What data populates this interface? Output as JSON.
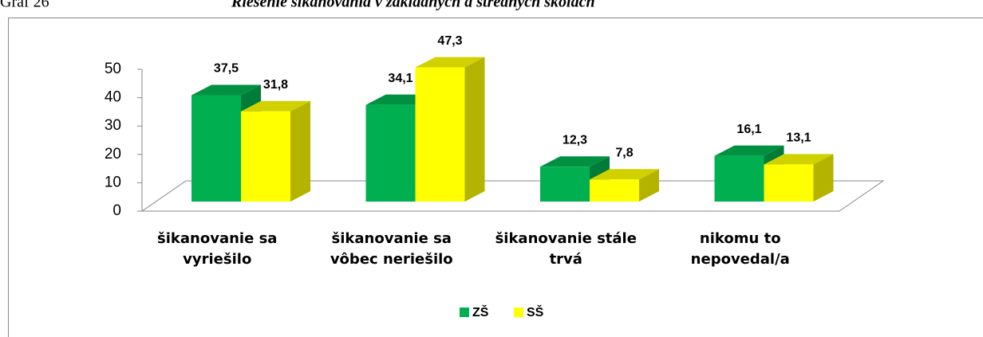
{
  "caption": {
    "label": "Graf 26",
    "title": "Riešenie šikanovania v základných a stredných školách"
  },
  "chart_data": {
    "type": "bar3d",
    "categories": [
      "šikanovanie sa vyriešilo",
      "šikanovanie sa vôbec neriešilo",
      "šikanovanie stále trvá",
      "nikomu to nepovedal/a"
    ],
    "series": [
      {
        "name": "ZŠ",
        "color": "#00b050",
        "values": [
          37.5,
          34.1,
          12.3,
          16.1
        ],
        "value_labels": [
          "37,5",
          "34,1",
          "12,3",
          "16,1"
        ]
      },
      {
        "name": "SŠ",
        "color": "#ffff00",
        "values": [
          31.8,
          47.3,
          7.8,
          13.1
        ],
        "value_labels": [
          "31,8",
          "47,3",
          "7,8",
          "13,1"
        ]
      }
    ],
    "ylim": [
      0,
      50
    ],
    "yticks": [
      0,
      10,
      20,
      30,
      40,
      50
    ],
    "grid": false,
    "legend": "bottom"
  }
}
